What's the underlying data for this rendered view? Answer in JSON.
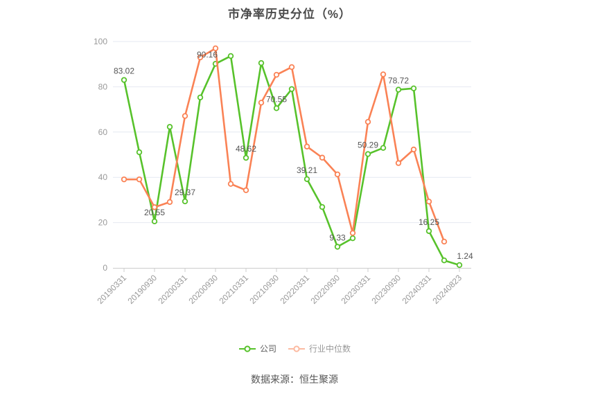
{
  "page": {
    "footer": "数据来源：恒生聚源"
  },
  "chart_data": {
    "type": "line",
    "title": "市净率历史分位（%）",
    "ylabel": "",
    "xlabel": "",
    "ylim": [
      0,
      100
    ],
    "y_ticks": [
      0,
      20,
      40,
      60,
      80,
      100
    ],
    "grid": true,
    "legend_position": "bottom",
    "x_tick_labels": [
      "20190331",
      "20190930",
      "20200331",
      "20200930",
      "20210331",
      "20210930",
      "20220331",
      "20220930",
      "20230331",
      "20230930",
      "20240331",
      "20240823"
    ],
    "x_points_per_label": 2,
    "colors": {
      "company_green": "#57c22b",
      "industry_orange": "#fa8255",
      "grid": "#e4e8f1",
      "axis": "#cccccc",
      "tick_text": "#999999",
      "value_label_text": "#555555"
    },
    "series": [
      {
        "name": "公司",
        "data_name": "company",
        "color": "#57c22b",
        "value_labels_every": 2,
        "label_dx": {
          "6": -12,
          "22": 8
        },
        "values": [
          83.02,
          51.1,
          20.55,
          62.3,
          29.37,
          75.3,
          90.16,
          93.6,
          48.62,
          90.5,
          70.55,
          79.0,
          39.21,
          26.9,
          9.33,
          13.1,
          50.29,
          53.0,
          78.72,
          79.3,
          16.25,
          3.3,
          1.24
        ]
      },
      {
        "name": "行业中位数",
        "data_name": "industry-median",
        "color": "#fa8255",
        "values": [
          39.1,
          39.1,
          26.8,
          29.1,
          67.1,
          93.0,
          97.0,
          37.1,
          34.3,
          73.0,
          85.3,
          88.7,
          53.6,
          48.7,
          41.3,
          15.4,
          64.5,
          85.5,
          46.3,
          52.3,
          29.3,
          11.6
        ]
      }
    ],
    "shown_value_labels": [
      "83.02",
      "20.55",
      "29.37",
      "90.16",
      "48.62",
      "70.55",
      "39.21",
      "9.33",
      "50.29",
      "78.72",
      "16.25",
      "1.24"
    ]
  }
}
